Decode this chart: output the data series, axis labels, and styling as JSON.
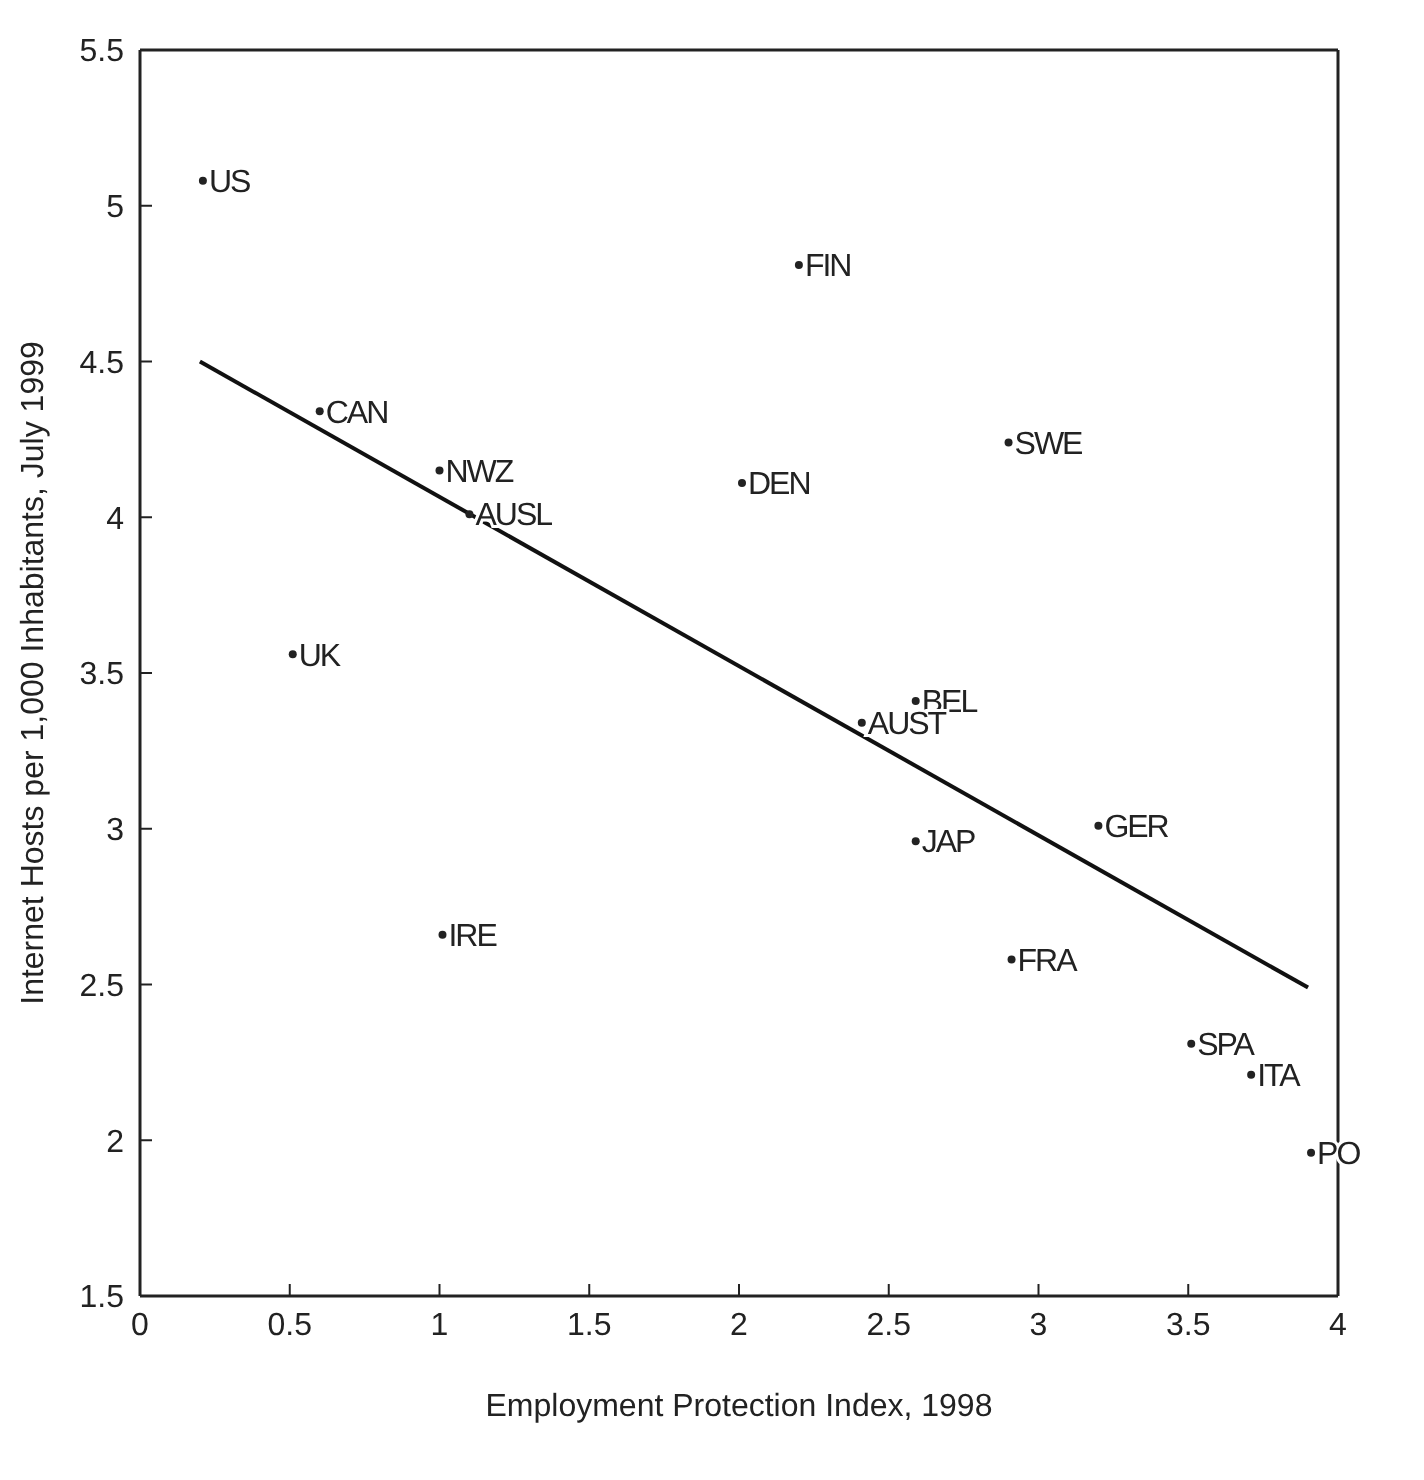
{
  "chart_data": {
    "type": "scatter",
    "xlabel": "Employment Protection Index, 1998",
    "ylabel": "Internet Hosts per 1,000 Inhabitants, July 1999",
    "xlim": [
      0,
      4
    ],
    "ylim": [
      1.5,
      5.5
    ],
    "xticks": [
      0,
      0.5,
      1,
      1.5,
      2,
      2.5,
      3,
      3.5,
      4
    ],
    "yticks": [
      1.5,
      2,
      2.5,
      3,
      3.5,
      4,
      4.5,
      5,
      5.5
    ],
    "grid": false,
    "legend": false,
    "series": [
      {
        "color": "#222222",
        "marker": "circle",
        "x": [
          0.21,
          0.6,
          1.0,
          1.1,
          0.51,
          1.01,
          2.01,
          2.2,
          2.9,
          2.59,
          2.41,
          2.59,
          3.2,
          2.91,
          3.51,
          3.71,
          3.91
        ],
        "values": [
          5.08,
          4.34,
          4.15,
          4.01,
          3.56,
          2.66,
          4.11,
          4.81,
          4.24,
          3.41,
          3.34,
          2.96,
          3.01,
          2.58,
          2.31,
          2.21,
          1.96
        ],
        "value_labels": [
          "US",
          "CAN",
          "NWZ",
          "AUSL",
          "UK",
          "IRE",
          "DEN",
          "FIN",
          "SWE",
          "BEL",
          "AUST",
          "JAP",
          "GER",
          "FRA",
          "SPA",
          "ITA",
          "PO"
        ]
      },
      {
        "type": "line",
        "color": "#111111",
        "line_style": "solid",
        "x": [
          0.2,
          3.9
        ],
        "values": [
          4.5,
          2.49
        ]
      }
    ]
  }
}
